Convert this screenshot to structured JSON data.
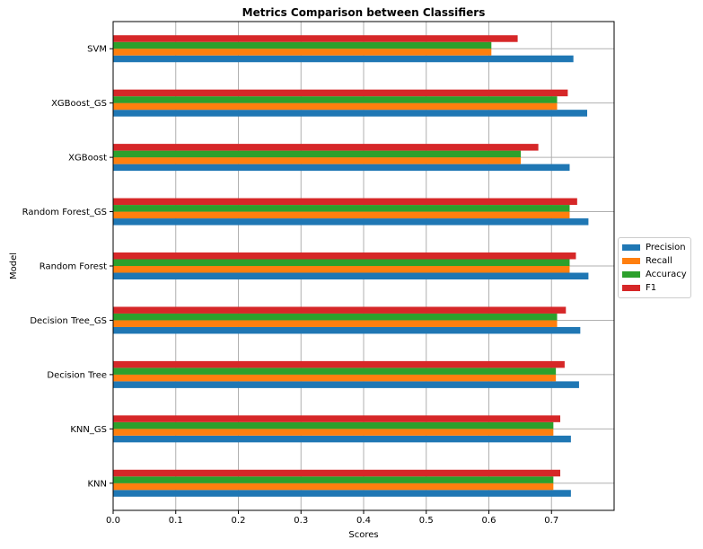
{
  "chart_data": {
    "type": "bar",
    "orientation": "horizontal",
    "title": "Metrics Comparison between Classifiers",
    "xlabel": "Scores",
    "ylabel": "Model",
    "xlim": [
      0,
      0.8
    ],
    "xticks": [
      "0.0",
      "0.1",
      "0.2",
      "0.3",
      "0.4",
      "0.5",
      "0.6",
      "0.7"
    ],
    "grid": true,
    "legend_position": "center-right outside",
    "categories": [
      "KNN",
      "KNN_GS",
      "Decision Tree",
      "Decision Tree_GS",
      "Random Forest",
      "Random Forest_GS",
      "XGBoost",
      "XGBoost_GS",
      "SVM"
    ],
    "series": [
      {
        "name": "Precision",
        "color": "#1f77b4",
        "values": [
          0.731,
          0.731,
          0.744,
          0.746,
          0.759,
          0.759,
          0.729,
          0.757,
          0.735
        ]
      },
      {
        "name": "Recall",
        "color": "#ff7f0e",
        "values": [
          0.703,
          0.703,
          0.707,
          0.709,
          0.729,
          0.729,
          0.651,
          0.709,
          0.604
        ]
      },
      {
        "name": "Accuracy",
        "color": "#2ca02c",
        "values": [
          0.703,
          0.703,
          0.707,
          0.709,
          0.729,
          0.729,
          0.651,
          0.709,
          0.604
        ]
      },
      {
        "name": "F1",
        "color": "#d62728",
        "values": [
          0.714,
          0.714,
          0.721,
          0.723,
          0.739,
          0.741,
          0.679,
          0.726,
          0.646
        ]
      }
    ]
  }
}
